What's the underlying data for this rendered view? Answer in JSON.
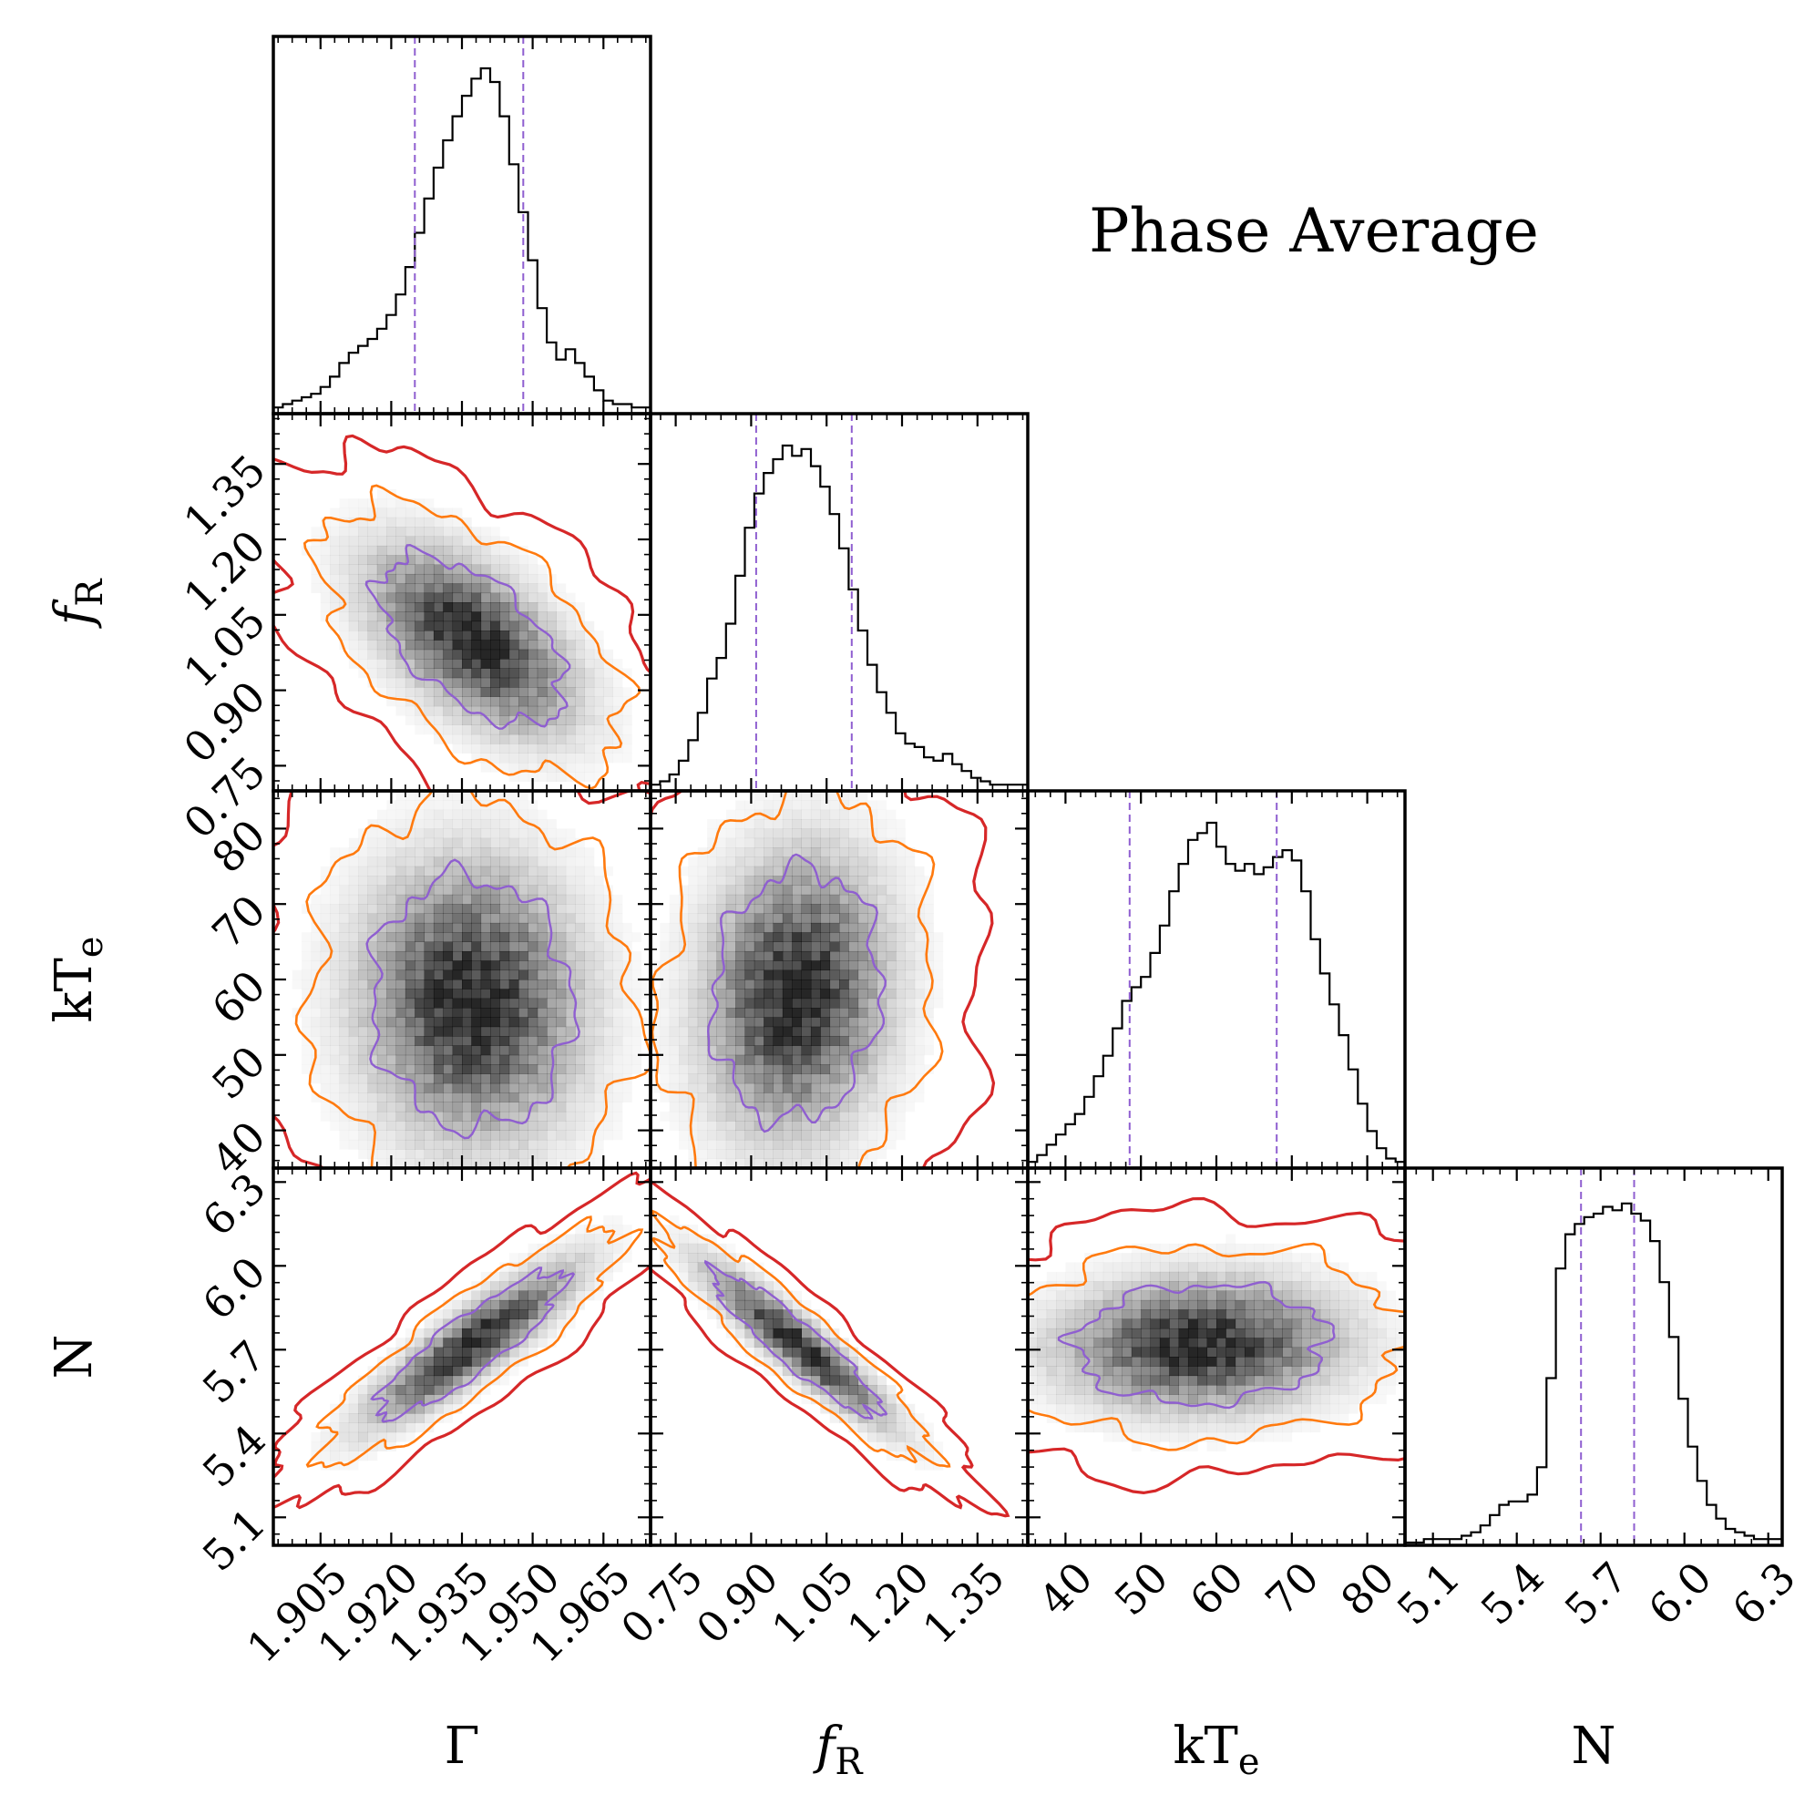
{
  "chart_data": {
    "type": "corner",
    "title": "Phase Average",
    "colors": {
      "hist": "#000000",
      "quantile": "#8f5fd0",
      "contour_1sigma": "#8f5fd0",
      "contour_2sigma": "#ff7a0e",
      "contour_3sigma": "#d62728",
      "density": "#000000"
    },
    "parameters": [
      {
        "symbol": "Γ",
        "label_main": "Γ",
        "label_sub": "",
        "italic": false,
        "range": [
          1.895,
          1.975
        ],
        "ticks": [
          "1.905",
          "1.920",
          "1.935",
          "1.950",
          "1.965"
        ],
        "tick_values": [
          1.905,
          1.92,
          1.935,
          1.95,
          1.965
        ],
        "median": 1.937,
        "quantiles": [
          1.925,
          1.948
        ],
        "left_tick_labels": []
      },
      {
        "symbol": "f_R",
        "label_main": "f",
        "label_sub": "R",
        "italic": true,
        "range": [
          0.7,
          1.45
        ],
        "ticks": [
          "0.75",
          "0.90",
          "1.05",
          "1.20",
          "1.35"
        ],
        "tick_values": [
          0.75,
          0.9,
          1.05,
          1.2,
          1.35
        ],
        "median": 0.995,
        "quantiles": [
          0.91,
          1.1
        ],
        "left_tick_labels": [
          "0.75",
          "0.90",
          "1.05",
          "1.20",
          "1.35"
        ],
        "left_tick_values": [
          0.75,
          0.9,
          1.05,
          1.2,
          1.35
        ]
      },
      {
        "symbol": "kT_e",
        "label_main": "kT",
        "label_sub": "e",
        "italic": false,
        "range": [
          35,
          85
        ],
        "ticks": [
          "40",
          "50",
          "60",
          "70",
          "80"
        ],
        "tick_values": [
          40,
          50,
          60,
          70,
          80
        ],
        "median": 58,
        "quantiles": [
          48.5,
          68
        ],
        "left_tick_labels": [
          "40",
          "50",
          "60",
          "70",
          "80"
        ],
        "left_tick_values": [
          40,
          50,
          60,
          70,
          80
        ]
      },
      {
        "symbol": "N",
        "label_main": "N",
        "label_sub": "",
        "italic": false,
        "range": [
          5.0,
          6.35
        ],
        "ticks": [
          "5.1",
          "5.4",
          "5.7",
          "6.0",
          "6.3"
        ],
        "tick_values": [
          5.1,
          5.4,
          5.7,
          6.0,
          6.3
        ],
        "median": 5.72,
        "quantiles": [
          5.63,
          5.82
        ],
        "left_tick_labels": [
          "5.1",
          "5.4",
          "5.7",
          "6.0",
          "6.3"
        ],
        "left_tick_values": [
          5.1,
          5.4,
          5.7,
          6.0,
          6.3
        ]
      }
    ],
    "histograms": [
      {
        "param": "Γ",
        "counts": [
          0.01,
          0.02,
          0.03,
          0.04,
          0.05,
          0.07,
          0.1,
          0.14,
          0.17,
          0.19,
          0.21,
          0.24,
          0.28,
          0.34,
          0.42,
          0.52,
          0.62,
          0.71,
          0.79,
          0.86,
          0.92,
          0.97,
          1.0,
          0.96,
          0.86,
          0.72,
          0.58,
          0.44,
          0.3,
          0.2,
          0.15,
          0.18,
          0.14,
          0.1,
          0.06,
          0.03,
          0.02,
          0.02,
          0.01,
          0.01
        ]
      },
      {
        "param": "f_R",
        "counts": [
          0.01,
          0.02,
          0.04,
          0.08,
          0.14,
          0.22,
          0.32,
          0.38,
          0.48,
          0.62,
          0.76,
          0.86,
          0.92,
          0.96,
          1.0,
          0.97,
          0.99,
          0.94,
          0.88,
          0.8,
          0.7,
          0.58,
          0.46,
          0.36,
          0.28,
          0.22,
          0.16,
          0.13,
          0.12,
          0.09,
          0.08,
          0.1,
          0.07,
          0.05,
          0.03,
          0.02,
          0.01,
          0.01,
          0.01,
          0.01
        ]
      },
      {
        "param": "kT_e",
        "counts": [
          0.01,
          0.03,
          0.06,
          0.09,
          0.12,
          0.15,
          0.2,
          0.26,
          0.32,
          0.4,
          0.48,
          0.52,
          0.55,
          0.62,
          0.7,
          0.8,
          0.88,
          0.95,
          0.97,
          1.0,
          0.93,
          0.88,
          0.86,
          0.88,
          0.85,
          0.87,
          0.9,
          0.92,
          0.89,
          0.8,
          0.66,
          0.56,
          0.47,
          0.38,
          0.28,
          0.18,
          0.1,
          0.05,
          0.02,
          0.01
        ]
      },
      {
        "param": "N",
        "counts": [
          0.0,
          0.0,
          0.01,
          0.01,
          0.01,
          0.01,
          0.02,
          0.03,
          0.05,
          0.08,
          0.11,
          0.12,
          0.12,
          0.14,
          0.22,
          0.48,
          0.8,
          0.9,
          0.93,
          0.95,
          0.96,
          0.98,
          0.97,
          0.99,
          0.96,
          0.94,
          0.88,
          0.76,
          0.6,
          0.42,
          0.28,
          0.18,
          0.11,
          0.07,
          0.04,
          0.03,
          0.02,
          0.01,
          0.01,
          0.01
        ]
      }
    ],
    "pairs": [
      {
        "x": "Γ",
        "y": "f_R",
        "center": [
          1.937,
          1.0
        ],
        "sigma": [
          0.013,
          0.11
        ],
        "correlation": -0.55
      },
      {
        "x": "Γ",
        "y": "kT_e",
        "center": [
          1.937,
          57
        ],
        "sigma": [
          0.014,
          11
        ],
        "correlation": -0.05
      },
      {
        "x": "f_R",
        "y": "kT_e",
        "center": [
          0.99,
          58
        ],
        "sigma": [
          0.11,
          11
        ],
        "correlation": 0.1
      },
      {
        "x": "Γ",
        "y": "N",
        "center": [
          1.937,
          5.72
        ],
        "sigma": [
          0.013,
          0.17
        ],
        "correlation": 0.88
      },
      {
        "x": "f_R",
        "y": "N",
        "center": [
          0.99,
          5.72
        ],
        "sigma": [
          0.11,
          0.17
        ],
        "correlation": -0.92
      },
      {
        "x": "kT_e",
        "y": "N",
        "center": [
          58,
          5.72
        ],
        "sigma": [
          11,
          0.14
        ],
        "correlation": 0.05
      }
    ]
  }
}
